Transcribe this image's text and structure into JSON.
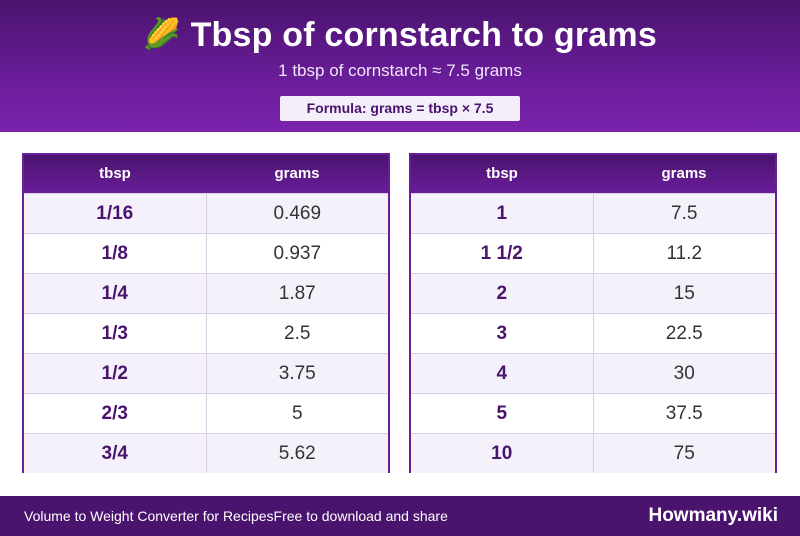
{
  "header": {
    "icon": "corn-icon",
    "title": "Tbsp of cornstarch to grams",
    "subtitle": "1 tbsp of cornstarch ≈ 7.5 grams",
    "formula": "Formula: grams = tbsp × 7.5"
  },
  "columns": {
    "tbsp": "tbsp",
    "grams": "grams"
  },
  "left_table": [
    {
      "tbsp": "1/16",
      "grams": "0.469"
    },
    {
      "tbsp": "1/8",
      "grams": "0.937"
    },
    {
      "tbsp": "1/4",
      "grams": "1.87"
    },
    {
      "tbsp": "1/3",
      "grams": "2.5"
    },
    {
      "tbsp": "1/2",
      "grams": "3.75"
    },
    {
      "tbsp": "2/3",
      "grams": "5"
    },
    {
      "tbsp": "3/4",
      "grams": "5.62"
    }
  ],
  "right_table": [
    {
      "tbsp": "1",
      "grams": "7.5"
    },
    {
      "tbsp": "1 1/2",
      "grams": "11.2"
    },
    {
      "tbsp": "2",
      "grams": "15"
    },
    {
      "tbsp": "3",
      "grams": "22.5"
    },
    {
      "tbsp": "4",
      "grams": "30"
    },
    {
      "tbsp": "5",
      "grams": "37.5"
    },
    {
      "tbsp": "10",
      "grams": "75"
    }
  ],
  "footer": {
    "left_text": "Volume to Weight Converter for Recipes",
    "right_text": "Free to download and share",
    "brand": "Howmany.wiki"
  },
  "colors": {
    "primary": "#4a136d",
    "accent": "#6a1d9a",
    "row_alt": "#f5f1fa"
  }
}
